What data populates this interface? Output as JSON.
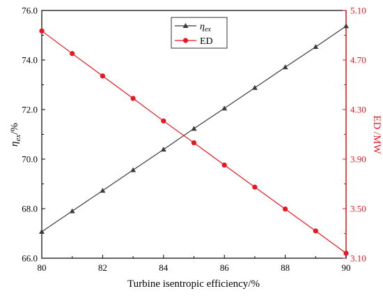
{
  "chart_data": {
    "type": "line",
    "x": [
      80,
      81,
      82,
      83,
      84,
      85,
      86,
      87,
      88,
      89,
      90
    ],
    "xlabel": "Turbine isentropic efficiency/%",
    "xlim": [
      80,
      90
    ],
    "x_ticks": [
      "80",
      "82",
      "84",
      "86",
      "88",
      "90"
    ],
    "left_axis": {
      "label": "η",
      "label_sub": "ex",
      "label_tail": "/%",
      "ylim": [
        66.0,
        76.0
      ],
      "ticks": [
        "66.0",
        "68.0",
        "70.0",
        "72.0",
        "74.0",
        "76.0"
      ],
      "color": "#000000"
    },
    "right_axis": {
      "label": "ED /MW",
      "ylim": [
        3.1,
        5.1
      ],
      "ticks": [
        "3.10",
        "3.50",
        "3.90",
        "4.30",
        "4.70",
        "5.10"
      ],
      "color": "#e8171f"
    },
    "series": [
      {
        "name": "η",
        "name_sub": "ex",
        "axis": "left",
        "color": "#3b3b3b",
        "marker": "triangle",
        "values": [
          67.07,
          67.9,
          68.73,
          69.56,
          70.39,
          71.23,
          72.05,
          72.88,
          73.71,
          74.53,
          75.37
        ]
      },
      {
        "name": "ED",
        "axis": "right",
        "color": "#e8171f",
        "marker": "circle",
        "values": [
          4.935,
          4.752,
          4.571,
          4.39,
          4.208,
          4.032,
          3.852,
          3.674,
          3.497,
          3.32,
          3.14
        ]
      }
    ],
    "legend": "top-center",
    "grid": false
  }
}
